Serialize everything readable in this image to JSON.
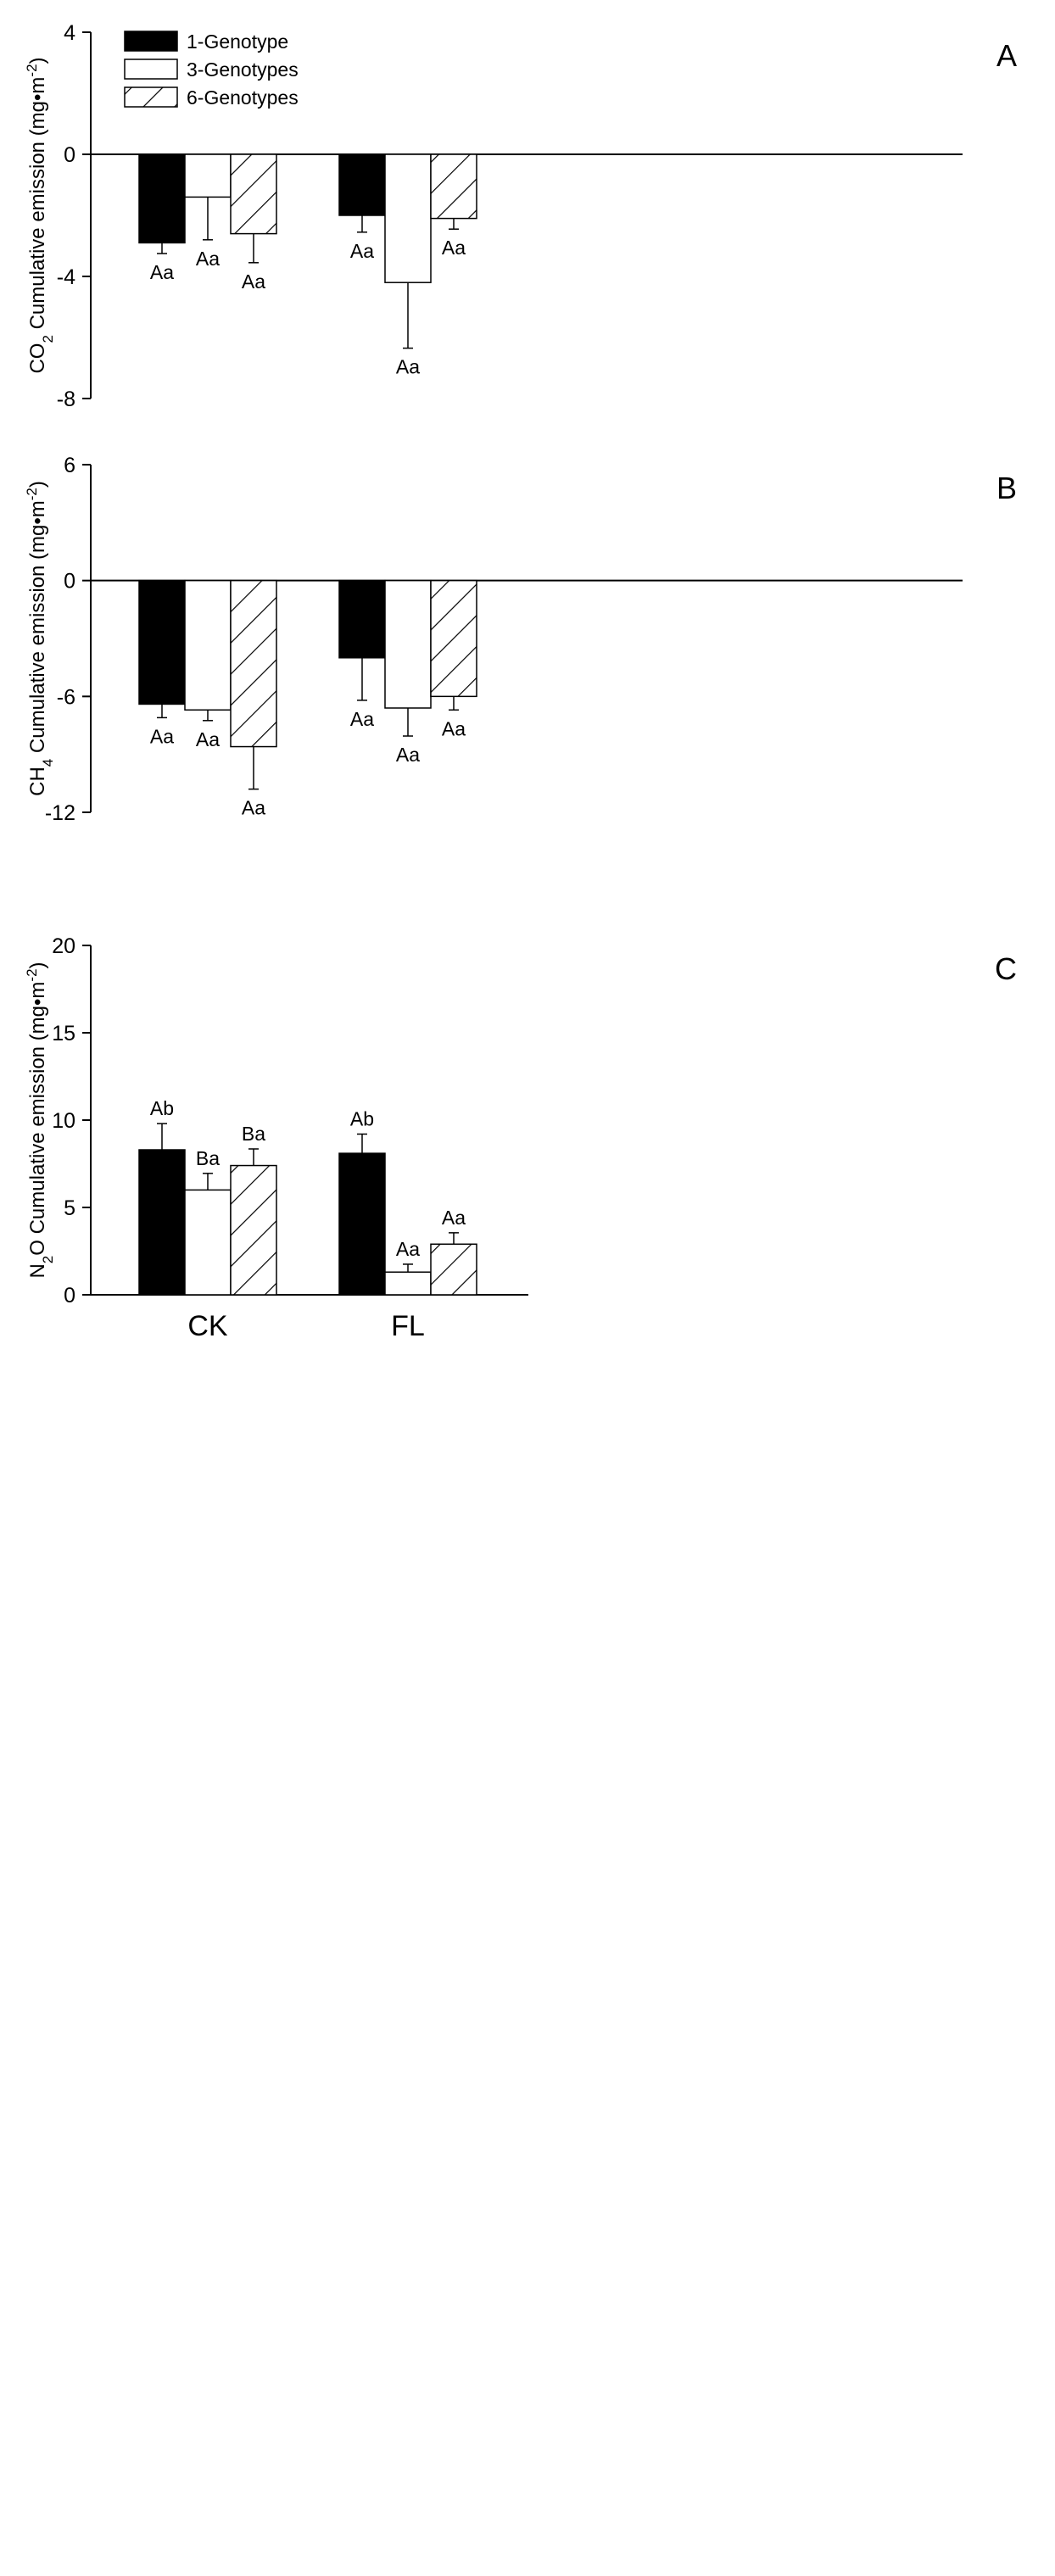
{
  "legend": {
    "entries": [
      {
        "label": "1-Genotype",
        "style": "solid"
      },
      {
        "label": "3-Genotypes",
        "style": "open"
      },
      {
        "label": "6-Genotypes",
        "style": "hatched"
      }
    ]
  },
  "colors": {
    "bar_solid": "#000000",
    "bar_open": "#ffffff",
    "hatch": "#000000",
    "axis": "#000000",
    "background": "#ffffff"
  },
  "chart_data": [
    {
      "type": "bar",
      "panel_label": "A",
      "ylabel": {
        "prefix": "CO",
        "sub": "2",
        "text": " Cumulative emission (mg•m",
        "sup": "-2",
        "suffix": ")"
      },
      "ylim": [
        -8,
        4
      ],
      "yticks": [
        4,
        0,
        -4,
        -8
      ],
      "categories": [
        "CK",
        "FL"
      ],
      "show_xticklabels": false,
      "series": [
        {
          "name": "1-Genotype",
          "values": [
            -2.9,
            -2.0
          ],
          "errors": [
            0.35,
            0.55
          ],
          "letters": [
            "Aa",
            "Aa"
          ]
        },
        {
          "name": "3-Genotypes",
          "values": [
            -1.4,
            -4.2
          ],
          "errors": [
            1.4,
            2.15
          ],
          "letters": [
            "Aa",
            "Aa"
          ]
        },
        {
          "name": "6-Genotypes",
          "values": [
            -2.6,
            -2.1
          ],
          "errors": [
            0.95,
            0.35
          ],
          "letters": [
            "Aa",
            "Aa"
          ]
        }
      ]
    },
    {
      "type": "bar",
      "panel_label": "B",
      "ylabel": {
        "prefix": "CH",
        "sub": "4",
        "text": " Cumulative emission (mg•m",
        "sup": "-2",
        "suffix": ")"
      },
      "ylim": [
        -12,
        6
      ],
      "yticks": [
        6,
        0,
        -6,
        -12
      ],
      "categories": [
        "CK",
        "FL"
      ],
      "show_xticklabels": false,
      "series": [
        {
          "name": "1-Genotype",
          "values": [
            -6.4,
            -4.0
          ],
          "errors": [
            0.7,
            2.2
          ],
          "letters": [
            "Aa",
            "Aa"
          ]
        },
        {
          "name": "3-Genotypes",
          "values": [
            -6.7,
            -6.6
          ],
          "errors": [
            0.55,
            1.45
          ],
          "letters": [
            "Aa",
            "Aa"
          ]
        },
        {
          "name": "6-Genotypes",
          "values": [
            -8.6,
            -6.0
          ],
          "errors": [
            2.2,
            0.7
          ],
          "letters": [
            "Aa",
            "Aa"
          ]
        }
      ]
    },
    {
      "type": "bar",
      "panel_label": "C",
      "ylabel": {
        "prefix": "N",
        "sub": "2",
        "text": "O Cumulative emission (mg•m",
        "sup": "-2",
        "suffix": ")"
      },
      "ylim": [
        0,
        20
      ],
      "yticks": [
        20,
        15,
        10,
        5,
        0
      ],
      "categories": [
        "CK",
        "FL"
      ],
      "show_xticklabels": true,
      "series": [
        {
          "name": "1-Genotype",
          "values": [
            8.3,
            8.1
          ],
          "errors": [
            1.5,
            1.1
          ],
          "letters": [
            "Ab",
            "Ab"
          ]
        },
        {
          "name": "3-Genotypes",
          "values": [
            6.0,
            1.3
          ],
          "errors": [
            0.95,
            0.45
          ],
          "letters": [
            "Ba",
            "Aa"
          ]
        },
        {
          "name": "6-Genotypes",
          "values": [
            7.4,
            2.9
          ],
          "errors": [
            0.95,
            0.65
          ],
          "letters": [
            "Ba",
            "Aa"
          ]
        }
      ]
    }
  ]
}
